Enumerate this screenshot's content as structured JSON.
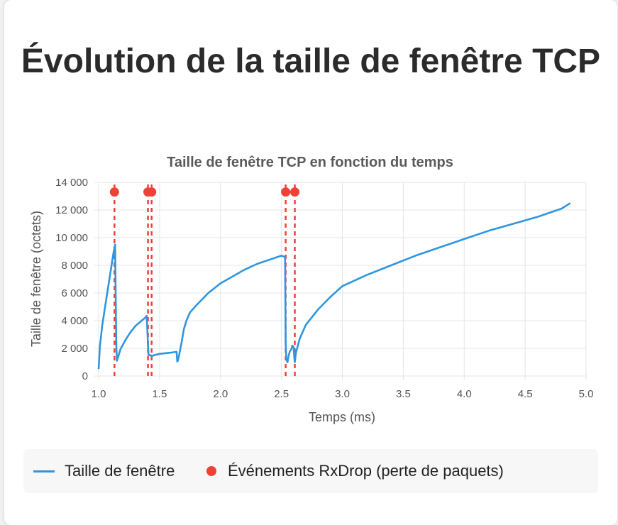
{
  "page": {
    "title": "Évolution de la taille de fenêtre TCP"
  },
  "colors": {
    "line": "#2e96e0",
    "event": "#ef4136",
    "grid": "#e5e5e5",
    "axis_text": "#555555"
  },
  "chart_data": {
    "type": "line",
    "title": "Taille de fenêtre TCP en fonction du temps",
    "xlabel": "Temps (ms)",
    "ylabel": "Taille de fenêtre (octets)",
    "xlim": [
      1.0,
      5.0
    ],
    "ylim": [
      0,
      14000
    ],
    "x_ticks": [
      1.0,
      1.5,
      2.0,
      2.5,
      3.0,
      3.5,
      4.0,
      4.5,
      5.0
    ],
    "x_tick_labels": [
      "1.0",
      "1.5",
      "2.0",
      "2.5",
      "3.0",
      "3.5",
      "4.0",
      "4.5",
      "5.0"
    ],
    "y_ticks": [
      0,
      2000,
      4000,
      6000,
      8000,
      10000,
      12000,
      14000
    ],
    "y_tick_labels": [
      "0",
      "2 000",
      "4 000",
      "6 000",
      "8 000",
      "10 000",
      "12 000",
      "14 000"
    ],
    "grid": true,
    "series": [
      {
        "name": "Taille de fenêtre",
        "x": [
          1.0,
          1.01,
          1.03,
          1.06,
          1.09,
          1.12,
          1.135,
          1.145,
          1.15,
          1.18,
          1.22,
          1.26,
          1.3,
          1.34,
          1.38,
          1.395,
          1.405,
          1.41,
          1.43,
          1.435,
          1.45,
          1.5,
          1.55,
          1.6,
          1.64,
          1.645,
          1.65,
          1.66,
          1.68,
          1.7,
          1.72,
          1.75,
          1.8,
          1.9,
          2.0,
          2.1,
          2.2,
          2.3,
          2.4,
          2.5,
          2.53,
          2.535,
          2.54,
          2.55,
          2.56,
          2.57,
          2.58,
          2.59,
          2.6,
          2.605,
          2.61,
          2.62,
          2.65,
          2.7,
          2.8,
          2.9,
          3.0,
          3.2,
          3.4,
          3.6,
          3.8,
          4.0,
          4.2,
          4.4,
          4.6,
          4.8,
          4.87
        ],
        "y": [
          500,
          2100,
          3700,
          5400,
          7100,
          8800,
          9500,
          2200,
          1100,
          1950,
          2600,
          3150,
          3600,
          3900,
          4200,
          4350,
          2200,
          1500,
          1500,
          1400,
          1500,
          1600,
          1650,
          1700,
          1750,
          1050,
          1100,
          1500,
          2400,
          3400,
          4000,
          4600,
          5100,
          6000,
          6700,
          7200,
          7700,
          8100,
          8400,
          8700,
          8600,
          2500,
          1200,
          1000,
          1500,
          1800,
          1900,
          2200,
          2100,
          1400,
          1000,
          1700,
          2700,
          3700,
          4800,
          5700,
          6500,
          7300,
          8000,
          8700,
          9300,
          9900,
          10500,
          11000,
          11500,
          12100,
          12500
        ]
      }
    ],
    "events": {
      "name": "Événements RxDrop (perte de paquets)",
      "x": [
        1.13,
        1.405,
        1.435,
        2.535,
        2.61
      ],
      "marker_y": 13300
    },
    "legend": [
      "Taille de fenêtre",
      "Événements RxDrop (perte de paquets)"
    ],
    "legend_position": "bottom"
  }
}
